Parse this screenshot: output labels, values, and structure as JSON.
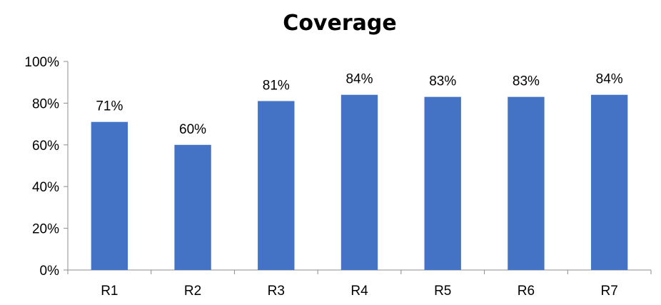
{
  "chart_data": {
    "type": "bar",
    "title": "Coverage",
    "xlabel": "",
    "ylabel": "",
    "categories": [
      "R1",
      "R2",
      "R3",
      "R4",
      "R5",
      "R6",
      "R7"
    ],
    "values": [
      71,
      60,
      81,
      84,
      83,
      83,
      84
    ],
    "data_labels": [
      "71%",
      "60%",
      "81%",
      "84%",
      "83%",
      "83%",
      "84%"
    ],
    "ylim": [
      0,
      100
    ],
    "yticks": [
      0,
      20,
      40,
      60,
      80,
      100
    ],
    "ytick_labels": [
      "0%",
      "20%",
      "40%",
      "60%",
      "80%",
      "100%"
    ],
    "grid": false,
    "legend": "none",
    "bar_color": "#4472C4"
  }
}
